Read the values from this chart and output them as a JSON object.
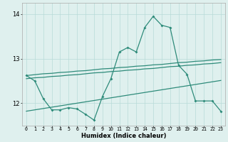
{
  "x": [
    0,
    1,
    2,
    3,
    4,
    5,
    6,
    7,
    8,
    9,
    10,
    11,
    12,
    13,
    14,
    15,
    16,
    17,
    18,
    19,
    20,
    21,
    22,
    23
  ],
  "main_line": [
    12.62,
    12.5,
    12.1,
    11.85,
    11.85,
    11.9,
    11.87,
    11.75,
    11.62,
    12.15,
    12.55,
    13.15,
    13.25,
    13.15,
    13.7,
    13.95,
    13.75,
    13.7,
    12.85,
    12.65,
    12.05,
    12.05,
    12.05,
    11.82
  ],
  "reg_top": [
    12.62,
    12.64,
    12.66,
    12.67,
    12.69,
    12.7,
    12.72,
    12.73,
    12.75,
    12.77,
    12.78,
    12.8,
    12.81,
    12.83,
    12.84,
    12.86,
    12.87,
    12.89,
    12.91,
    12.92,
    12.94,
    12.95,
    12.97,
    12.98
  ],
  "reg_mid": [
    12.55,
    12.57,
    12.58,
    12.6,
    12.61,
    12.63,
    12.64,
    12.66,
    12.68,
    12.69,
    12.71,
    12.72,
    12.74,
    12.75,
    12.77,
    12.78,
    12.8,
    12.82,
    12.83,
    12.85,
    12.86,
    12.88,
    12.89,
    12.91
  ],
  "reg_bot": [
    11.82,
    11.85,
    11.88,
    11.91,
    11.94,
    11.97,
    12.0,
    12.03,
    12.06,
    12.09,
    12.12,
    12.15,
    12.18,
    12.21,
    12.24,
    12.27,
    12.3,
    12.33,
    12.36,
    12.39,
    12.42,
    12.45,
    12.48,
    12.51
  ],
  "color": "#2e8b7a",
  "bg_color": "#dff0ee",
  "grid_color": "#b8dbd8",
  "xlabel": "Humidex (Indice chaleur)",
  "ylim": [
    11.5,
    14.25
  ],
  "xlim": [
    -0.5,
    23.5
  ],
  "yticks": [
    12,
    13,
    14
  ],
  "xtick_labels": [
    "0",
    "1",
    "2",
    "3",
    "4",
    "5",
    "6",
    "7",
    "8",
    "9",
    "10",
    "11",
    "12",
    "13",
    "14",
    "15",
    "16",
    "17",
    "18",
    "19",
    "20",
    "21",
    "22",
    "23"
  ]
}
